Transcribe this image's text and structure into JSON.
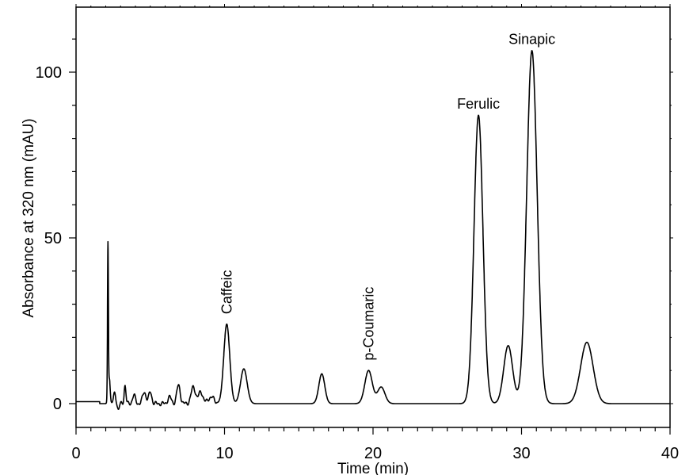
{
  "chart_data": {
    "type": "line",
    "title": "",
    "xlabel": "Time (min)",
    "ylabel": "Absorbance at 320 nm (mAU)",
    "xlim": [
      0,
      40
    ],
    "ylim": [
      -8,
      120
    ],
    "x_ticks": [
      0,
      10,
      20,
      30,
      40
    ],
    "x_tick_labels": [
      "0",
      "10",
      "20",
      "30",
      "40"
    ],
    "y_ticks": [
      0,
      50,
      100
    ],
    "y_tick_labels": [
      "0",
      "50",
      "100"
    ],
    "grid": false,
    "legend": "none",
    "line_color": "#000000",
    "series": [
      {
        "baseline": 0,
        "peaks": [
          {
            "t": 2.15,
            "height": 47.5,
            "width": 0.03
          },
          {
            "t": 2.25,
            "height": 8,
            "width": 0.05
          },
          {
            "t": 2.6,
            "height": 3,
            "width": 0.08
          },
          {
            "t": 2.85,
            "height": -1.8,
            "width": 0.06
          },
          {
            "t": 3.3,
            "height": 5.5,
            "width": 0.06
          },
          {
            "t": 3.9,
            "height": 2.5,
            "width": 0.1
          },
          {
            "t": 4.6,
            "height": 3.5,
            "width": 0.12
          },
          {
            "t": 5.0,
            "height": 3.5,
            "width": 0.1
          },
          {
            "t": 6.3,
            "height": 2,
            "width": 0.12
          },
          {
            "t": 6.9,
            "height": 5.5,
            "width": 0.12
          },
          {
            "t": 7.9,
            "height": 5,
            "width": 0.15
          },
          {
            "t": 8.4,
            "height": 3.5,
            "width": 0.15
          },
          {
            "t": 9.1,
            "height": 2,
            "width": 0.2
          },
          {
            "t": 10.15,
            "height": 24,
            "width": 0.2
          },
          {
            "t": 11.3,
            "height": 10.5,
            "width": 0.22
          },
          {
            "t": 16.55,
            "height": 9,
            "width": 0.2
          },
          {
            "t": 19.7,
            "height": 10,
            "width": 0.25
          },
          {
            "t": 20.55,
            "height": 5,
            "width": 0.25
          },
          {
            "t": 27.1,
            "height": 87,
            "width": 0.3
          },
          {
            "t": 29.1,
            "height": 17.5,
            "width": 0.3
          },
          {
            "t": 30.7,
            "height": 106.5,
            "width": 0.35
          },
          {
            "t": 34.4,
            "height": 18.5,
            "width": 0.42
          }
        ]
      }
    ],
    "annotations": [
      {
        "text": "Caffeic",
        "x": 10.15,
        "y": 27,
        "orientation": "vertical"
      },
      {
        "text": "p-Coumaric",
        "x": 19.7,
        "y": 13,
        "orientation": "vertical"
      },
      {
        "text": "Ferulic",
        "x": 27.1,
        "y": 89,
        "orientation": "horizontal"
      },
      {
        "text": "Sinapic",
        "x": 30.7,
        "y": 108.5,
        "orientation": "horizontal"
      }
    ]
  }
}
